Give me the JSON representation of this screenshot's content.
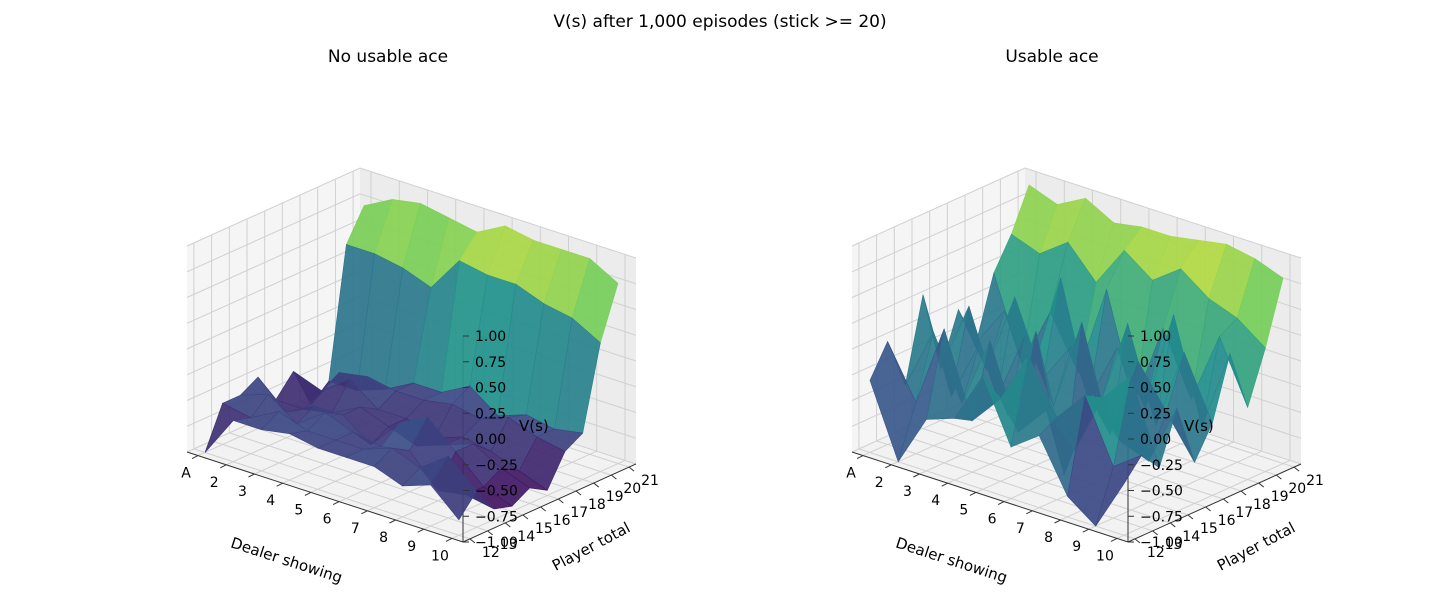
{
  "figure": {
    "suptitle": "V(s) after 1,000 episodes (stick >= 20)"
  },
  "colormap": [
    "#440154",
    "#3b528b",
    "#21918c",
    "#5ec962",
    "#fde725"
  ],
  "chart_data": [
    {
      "type": "surface3d",
      "title": "No usable ace",
      "xlabel": "Dealer showing",
      "ylabel": "Player total",
      "zlabel": "V(s)",
      "x_ticks": [
        "A",
        "2",
        "3",
        "4",
        "5",
        "6",
        "7",
        "8",
        "9",
        "10"
      ],
      "y_ticks": [
        "12",
        "13",
        "14",
        "15",
        "16",
        "17",
        "18",
        "19",
        "20",
        "21"
      ],
      "z_ticks": [
        "−1.00",
        "−0.75",
        "−0.50",
        "−0.25",
        "0.00",
        "0.25",
        "0.50",
        "0.75",
        "1.00"
      ],
      "zlim": [
        -1,
        1
      ],
      "grid": true,
      "z": [
        [
          -1.0,
          -0.6,
          -0.6,
          -0.55,
          -0.6,
          -0.6,
          -0.6,
          -0.7,
          -0.6,
          -0.85
        ],
        [
          -0.6,
          -0.65,
          -0.5,
          -0.6,
          -0.6,
          -0.6,
          -0.5,
          -0.6,
          -0.4,
          -0.65
        ],
        [
          -0.6,
          -0.5,
          -0.7,
          -0.5,
          -0.6,
          -0.65,
          -0.6,
          -0.9,
          -0.85,
          -0.9
        ],
        [
          -0.5,
          -0.75,
          -0.6,
          -0.6,
          -0.8,
          -0.5,
          -0.35,
          -0.6,
          -0.85,
          -0.95
        ],
        [
          -0.8,
          -0.8,
          -0.75,
          -0.6,
          -0.7,
          -0.8,
          -0.7,
          -0.6,
          -0.75,
          -0.85
        ],
        [
          -0.6,
          -0.7,
          -0.5,
          -0.7,
          -0.7,
          -0.8,
          -0.7,
          -0.75,
          -0.85,
          -0.95
        ],
        [
          -1.0,
          -0.6,
          -0.55,
          -0.6,
          -0.6,
          -0.55,
          -0.6,
          -0.5,
          -0.6,
          -0.65
        ],
        [
          -0.85,
          -0.85,
          -0.75,
          -0.6,
          -0.6,
          -0.45,
          -0.65,
          -0.55,
          -0.6,
          -0.55
        ],
        [
          0.4,
          0.4,
          0.35,
          0.25,
          0.6,
          0.55,
          0.55,
          0.45,
          0.4,
          0.25
        ],
        [
          0.7,
          0.85,
          0.9,
          0.85,
          0.8,
          0.95,
          0.9,
          0.9,
          0.9,
          0.75
        ]
      ]
    },
    {
      "type": "surface3d",
      "title": "Usable ace",
      "xlabel": "Dealer showing",
      "ylabel": "Player total",
      "zlabel": "V(s)",
      "x_ticks": [
        "A",
        "2",
        "3",
        "4",
        "5",
        "6",
        "7",
        "8",
        "9",
        "10"
      ],
      "y_ticks": [
        "12",
        "13",
        "14",
        "15",
        "16",
        "17",
        "18",
        "19",
        "20",
        "21"
      ],
      "z_ticks": [
        "−1.00",
        "−0.75",
        "−0.50",
        "−0.25",
        "0.00",
        "0.25",
        "0.50",
        "0.75",
        "1.00"
      ],
      "zlim": [
        -1,
        1
      ],
      "grid": true,
      "z": [
        [
          -0.3,
          -1.0,
          -0.5,
          -0.4,
          0.1,
          -0.5,
          -0.3,
          -0.8,
          -1.0,
          -0.5
        ],
        [
          0.0,
          -0.5,
          0.3,
          -0.5,
          -0.2,
          0.3,
          -0.2,
          0.1,
          -0.5,
          -0.3
        ],
        [
          -0.5,
          0.1,
          -0.5,
          0.2,
          -0.6,
          -0.3,
          -0.6,
          0.0,
          0.3,
          -0.5
        ],
        [
          0.3,
          -0.6,
          0.0,
          -0.6,
          0.3,
          -1.0,
          -0.2,
          -0.5,
          -0.6,
          0.0
        ],
        [
          -0.5,
          0.2,
          -0.6,
          0.1,
          -0.5,
          0.4,
          -0.6,
          0.2,
          -0.2,
          -0.6
        ],
        [
          0.0,
          -0.5,
          0.3,
          -0.4,
          0.0,
          -0.5,
          0.4,
          -0.5,
          0.3,
          -0.3
        ],
        [
          -0.4,
          0.0,
          -0.5,
          0.5,
          -0.6,
          0.0,
          -0.5,
          0.5,
          -0.5,
          0.3
        ],
        [
          0.2,
          -0.6,
          0.0,
          -0.5,
          0.4,
          -0.6,
          0.2,
          -0.4,
          0.3,
          -0.3
        ],
        [
          0.5,
          0.4,
          0.6,
          0.3,
          0.7,
          0.5,
          0.7,
          0.5,
          0.4,
          0.2
        ],
        [
          0.9,
          0.8,
          0.95,
          0.8,
          0.85,
          0.85,
          0.9,
          0.95,
          0.9,
          0.8
        ]
      ]
    }
  ]
}
